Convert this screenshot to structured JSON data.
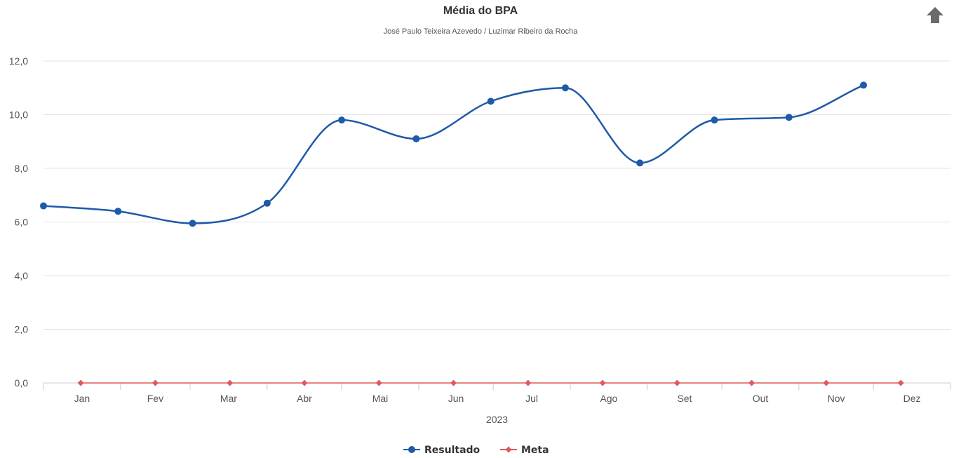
{
  "chart_data": {
    "type": "line",
    "title": "Média do BPA",
    "subtitle": "José Paulo Teixeira Azevedo / Luzimar Ribeiro da Rocha",
    "xlabel": "2023",
    "ylabel": "",
    "ylim": [
      0,
      12
    ],
    "y_ticks": [
      "0,0",
      "2,0",
      "4,0",
      "6,0",
      "8,0",
      "10,0",
      "12,0"
    ],
    "y_tick_values": [
      0,
      2,
      4,
      6,
      8,
      10,
      12
    ],
    "categories": [
      "Jan",
      "Fev",
      "Mar",
      "Abr",
      "Mai",
      "Jun",
      "Jul",
      "Ago",
      "Set",
      "Out",
      "Nov",
      "Dez"
    ],
    "grid": true,
    "legend_position": "bottom-center",
    "series": [
      {
        "name": "Resultado",
        "color": "#1f5aa8",
        "marker": "circle",
        "smooth": true,
        "x": [
          "2023-01-01",
          "2023-01-31",
          "2023-03-02",
          "2023-04-01",
          "2023-05-01",
          "2023-05-31",
          "2023-06-30",
          "2023-07-30",
          "2023-08-29",
          "2023-09-28",
          "2023-10-28",
          "2023-11-27"
        ],
        "values": [
          6.6,
          6.4,
          5.95,
          6.7,
          9.8,
          9.1,
          10.5,
          11.0,
          8.2,
          9.8,
          9.9,
          11.1
        ]
      },
      {
        "name": "Meta",
        "color": "#e05a5a",
        "marker": "diamond",
        "smooth": false,
        "x": [
          "2023-01-16",
          "2023-02-15",
          "2023-03-17",
          "2023-04-16",
          "2023-05-16",
          "2023-06-15",
          "2023-07-15",
          "2023-08-14",
          "2023-09-13",
          "2023-10-13",
          "2023-11-12",
          "2023-12-12"
        ],
        "values": [
          0,
          0,
          0,
          0,
          0,
          0,
          0,
          0,
          0,
          0,
          0,
          0
        ]
      }
    ]
  },
  "toolbar": {
    "export_icon": "arrow-up-icon",
    "export_color": "#6b6b6b"
  }
}
